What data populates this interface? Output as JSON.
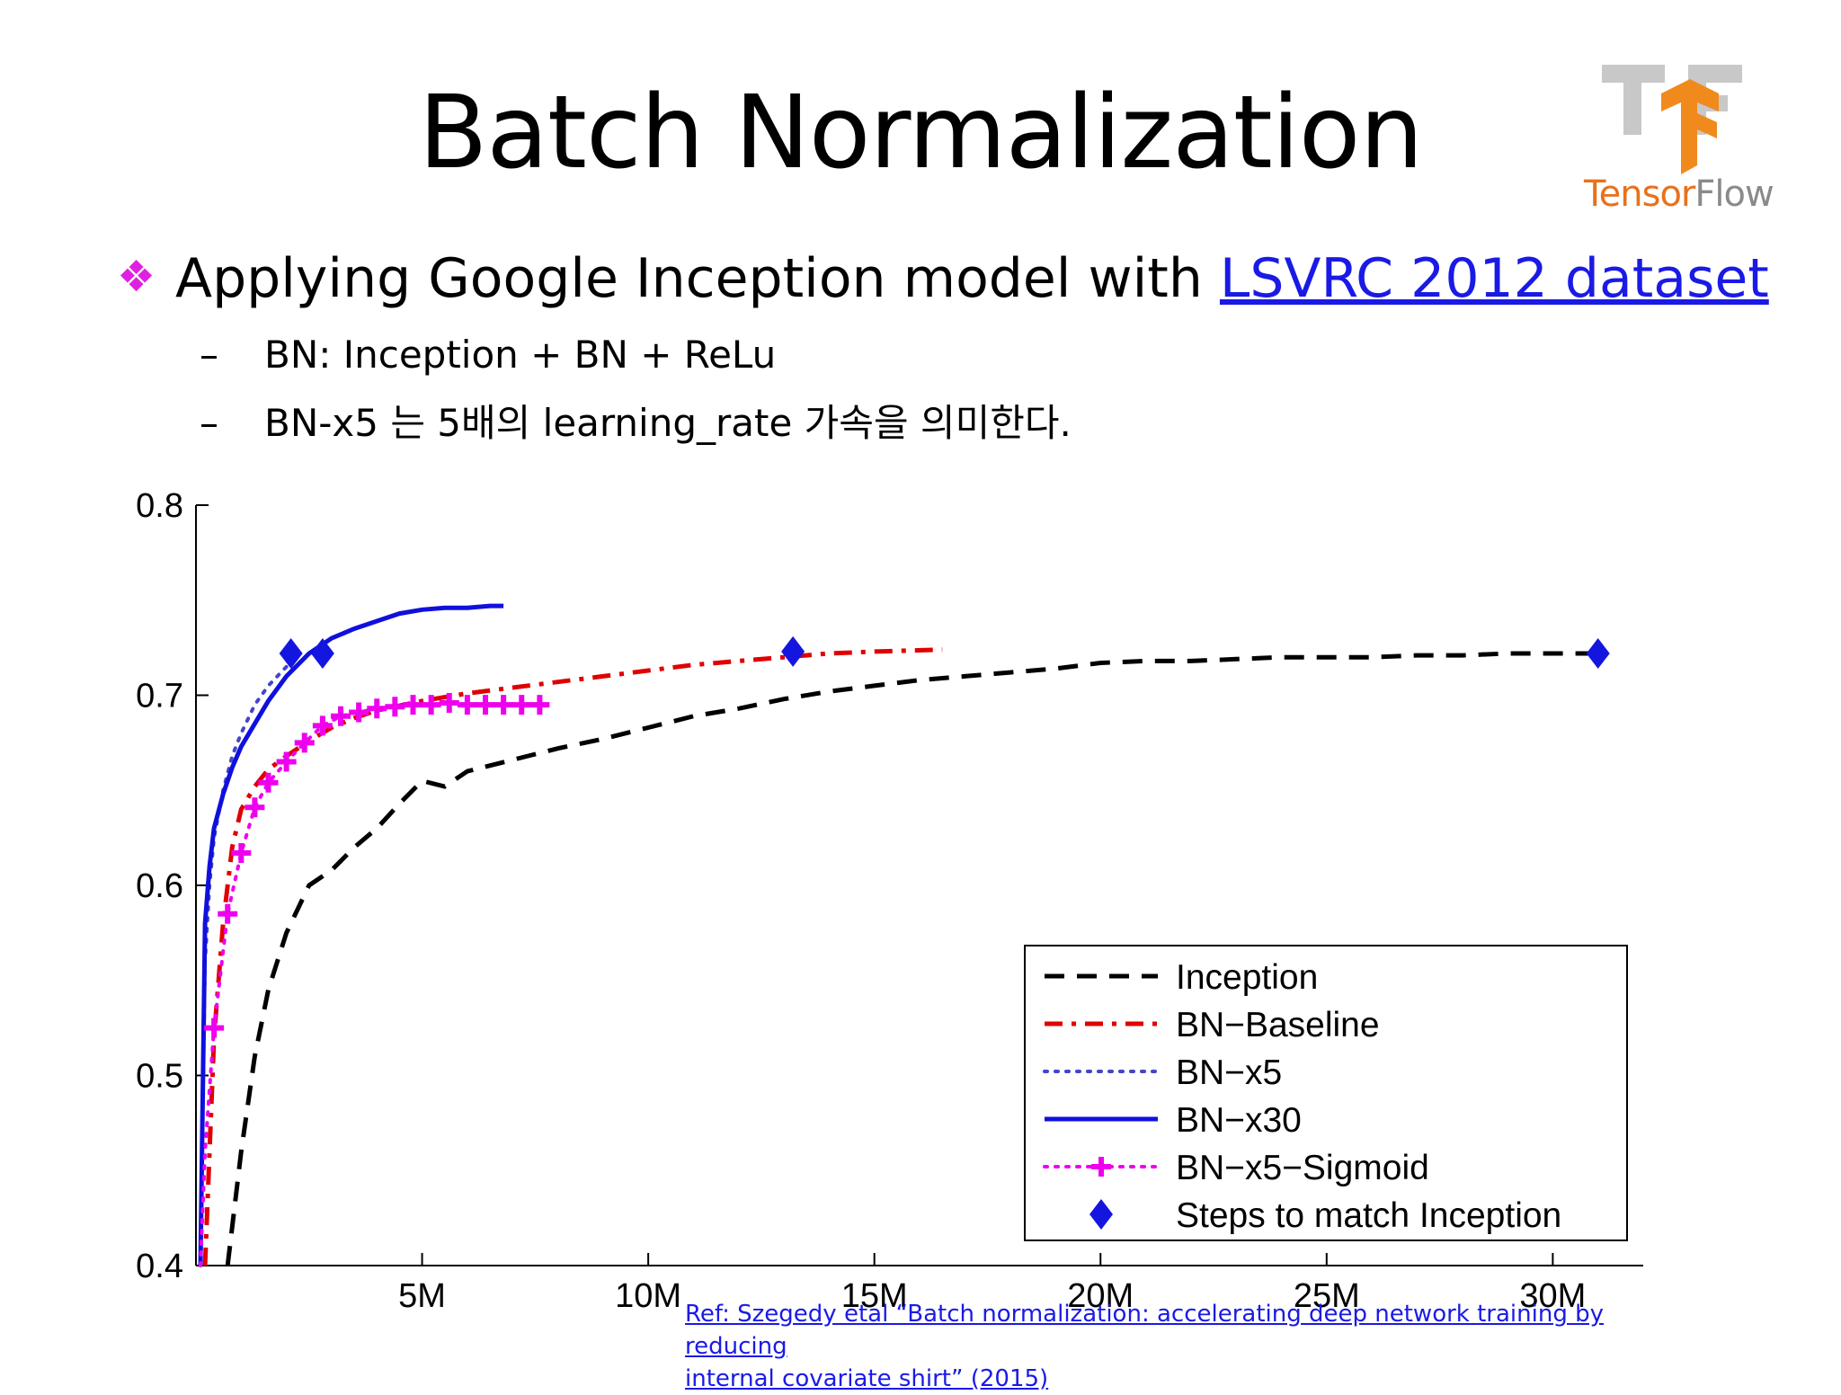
{
  "slide": {
    "title": "Batch Normalization",
    "logo_text_a": "Tensor",
    "logo_text_b": "Flow",
    "bullet_symbol": "❖",
    "bullet_text": "Applying Google Inception model with ",
    "bullet_link": "LSVRC 2012 dataset",
    "sub_dash": "–",
    "sub_items": [
      "BN: Inception + BN + ReLu",
      "BN-x5 는 5배의 learning_rate 가속을 의미한다."
    ],
    "ref_line1": "Ref: Szegedy etal “Batch normalization: accelerating deep network training by reducing",
    "ref_line2": "internal covariate shirt” (2015)",
    "colors": {
      "link": "#1a1ae6",
      "bullet": "#e020e0",
      "logo_orange": "#e8711a",
      "logo_gray": "#8a8a8a"
    }
  },
  "chart_data": {
    "type": "line",
    "title": "",
    "xlabel": "",
    "ylabel": "",
    "xlim": [
      0,
      32000000
    ],
    "ylim": [
      0.4,
      0.8
    ],
    "xticks": [
      5000000,
      10000000,
      15000000,
      20000000,
      25000000,
      30000000
    ],
    "xtick_labels": [
      "5M",
      "10M",
      "15M",
      "20M",
      "25M",
      "30M"
    ],
    "yticks": [
      0.4,
      0.5,
      0.6,
      0.7,
      0.8
    ],
    "ytick_labels": [
      "0.4",
      "0.5",
      "0.6",
      "0.7",
      "0.8"
    ],
    "legend_position": "bottom-right",
    "series": [
      {
        "name": "Inception",
        "color": "#000000",
        "style": "dashed",
        "marker": "none",
        "x": [
          700000,
          1000000,
          1300000,
          1600000,
          2000000,
          2500000,
          3000000,
          3500000,
          4000000,
          4500000,
          5000000,
          5500000,
          6000000,
          7000000,
          8000000,
          9000000,
          10000000,
          11000000,
          12000000,
          13000000,
          14000000,
          15000000,
          16000000,
          17000000,
          18000000,
          19000000,
          20000000,
          21000000,
          22000000,
          23000000,
          24000000,
          25000000,
          26000000,
          27000000,
          28000000,
          29000000,
          30000000,
          31000000
        ],
        "y": [
          0.4,
          0.46,
          0.51,
          0.545,
          0.575,
          0.6,
          0.608,
          0.62,
          0.63,
          0.643,
          0.655,
          0.652,
          0.66,
          0.666,
          0.672,
          0.677,
          0.683,
          0.689,
          0.693,
          0.698,
          0.702,
          0.705,
          0.708,
          0.71,
          0.712,
          0.714,
          0.717,
          0.718,
          0.718,
          0.719,
          0.72,
          0.72,
          0.72,
          0.721,
          0.721,
          0.722,
          0.722,
          0.722
        ]
      },
      {
        "name": "BN−Baseline",
        "color": "#e00000",
        "style": "dashdot",
        "marker": "none",
        "x": [
          200000,
          400000,
          600000,
          800000,
          1000000,
          1300000,
          1600000,
          2000000,
          2500000,
          3000000,
          3500000,
          4000000,
          5000000,
          6000000,
          7000000,
          8000000,
          9000000,
          10000000,
          11000000,
          12000000,
          13000000,
          14000000,
          15000000,
          16500000
        ],
        "y": [
          0.4,
          0.52,
          0.58,
          0.62,
          0.64,
          0.652,
          0.661,
          0.668,
          0.676,
          0.683,
          0.688,
          0.692,
          0.697,
          0.701,
          0.704,
          0.707,
          0.71,
          0.713,
          0.716,
          0.718,
          0.72,
          0.722,
          0.723,
          0.724
        ]
      },
      {
        "name": "BN−x5",
        "color": "#4444cc",
        "style": "dotted",
        "marker": "none",
        "x": [
          100000,
          200000,
          300000,
          400000,
          600000,
          800000,
          1000000,
          1300000,
          1600000,
          2000000,
          2200000
        ],
        "y": [
          0.4,
          0.56,
          0.6,
          0.625,
          0.65,
          0.668,
          0.68,
          0.695,
          0.705,
          0.715,
          0.722
        ]
      },
      {
        "name": "BN−x30",
        "color": "#1010dd",
        "style": "solid",
        "marker": "none",
        "x": [
          100000,
          200000,
          300000,
          400000,
          600000,
          800000,
          1000000,
          1300000,
          1600000,
          2000000,
          2500000,
          3000000,
          3500000,
          4000000,
          4500000,
          5000000,
          5500000,
          6000000,
          6500000,
          6800000
        ],
        "y": [
          0.4,
          0.58,
          0.61,
          0.63,
          0.648,
          0.662,
          0.673,
          0.685,
          0.697,
          0.71,
          0.722,
          0.73,
          0.735,
          0.739,
          0.743,
          0.745,
          0.746,
          0.746,
          0.747,
          0.747
        ]
      },
      {
        "name": "BN−x5−Sigmoid",
        "color": "#ee00ee",
        "style": "dotted",
        "marker": "plus",
        "x": [
          100000,
          200000,
          400000,
          700000,
          1000000,
          1300000,
          1600000,
          2000000,
          2400000,
          2800000,
          3200000,
          3600000,
          4000000,
          4400000,
          4800000,
          5200000,
          5600000,
          6000000,
          6400000,
          6800000,
          7200000,
          7600000
        ],
        "y": [
          0.4,
          0.46,
          0.525,
          0.585,
          0.617,
          0.641,
          0.654,
          0.665,
          0.675,
          0.684,
          0.689,
          0.691,
          0.693,
          0.694,
          0.695,
          0.695,
          0.696,
          0.695,
          0.695,
          0.695,
          0.695,
          0.695
        ]
      },
      {
        "name": "Steps to match Inception",
        "color": "#1515e0",
        "style": "none",
        "marker": "diamond",
        "x": [
          2100000,
          2800000,
          13200000,
          31000000
        ],
        "y": [
          0.722,
          0.722,
          0.723,
          0.722
        ]
      }
    ]
  }
}
